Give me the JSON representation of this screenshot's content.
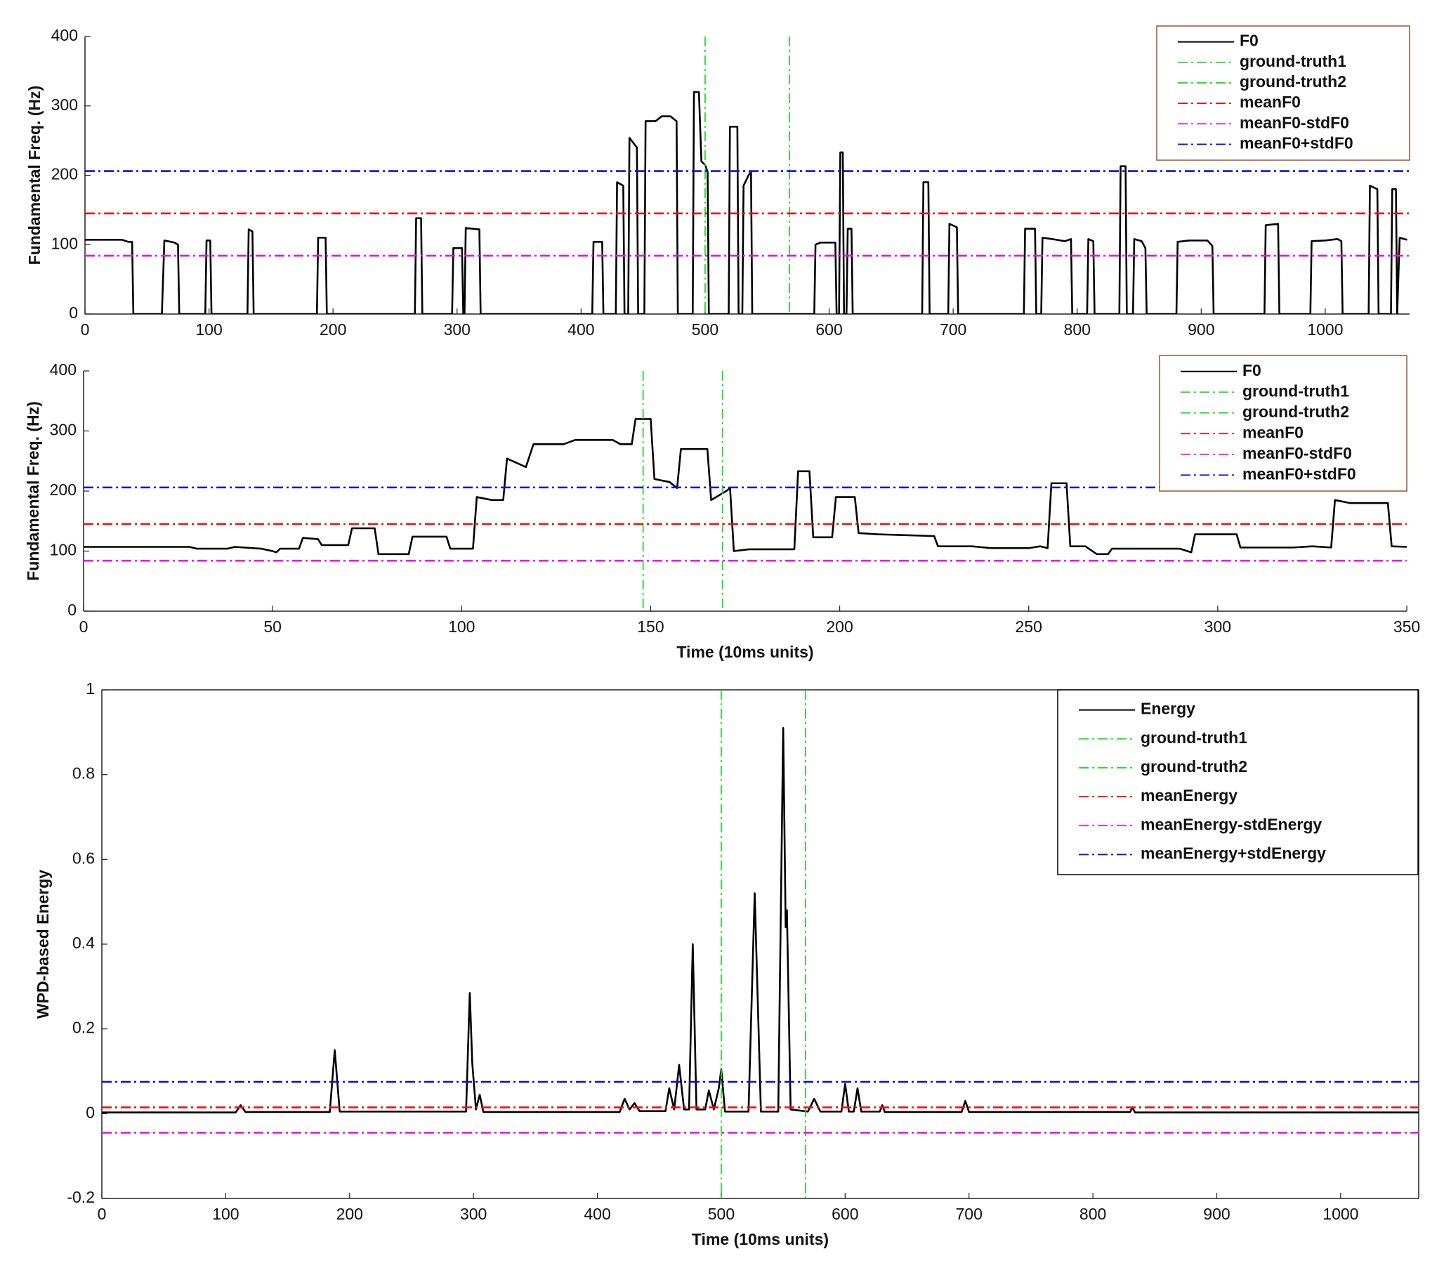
{
  "chart_data": [
    {
      "type": "line",
      "ylabel": "Fundamental Freq. (Hz)",
      "xlim": [
        0,
        1068
      ],
      "ylim": [
        0,
        400
      ],
      "xticks": [
        0,
        100,
        200,
        300,
        400,
        500,
        600,
        700,
        800,
        900,
        1000
      ],
      "yticks": [
        0,
        100,
        200,
        300,
        400
      ],
      "legend": "upper right",
      "legend_edgecolor": "#a0522d",
      "box": false,
      "series": [
        {
          "name": "F0",
          "color": "#000000",
          "style": "solid",
          "x": [
            0,
            30,
            35,
            38,
            39,
            62,
            64,
            72,
            75,
            76,
            97,
            98,
            101,
            102,
            131,
            132,
            135,
            136,
            187,
            188,
            194,
            195,
            266,
            267,
            271,
            272,
            296,
            297,
            304,
            305,
            306,
            307,
            318,
            319,
            409,
            410,
            417,
            418,
            428,
            429,
            434,
            435,
            438,
            439,
            445,
            446,
            451,
            452,
            460,
            465,
            472,
            477,
            478,
            490,
            491,
            495,
            497,
            500,
            502,
            503,
            519,
            520,
            526,
            527,
            530,
            531,
            535,
            537,
            538,
            588,
            589,
            593,
            605,
            606,
            608,
            609,
            611,
            612,
            614,
            615,
            618,
            619,
            675,
            676,
            680,
            681,
            696,
            697,
            703,
            704,
            757,
            758,
            766,
            767,
            771,
            772,
            780,
            790,
            795,
            796,
            808,
            809,
            813,
            814,
            834,
            835,
            839,
            840,
            845,
            846,
            852,
            855,
            856,
            880,
            881,
            890,
            905,
            909,
            910,
            951,
            952,
            962,
            963,
            988,
            989,
            1000,
            1010,
            1013,
            1014,
            1035,
            1036,
            1042,
            1043,
            1053,
            1054,
            1057,
            1058,
            1060,
            1066
          ],
          "values": [
            107,
            107,
            104,
            104,
            0,
            0,
            106,
            103,
            100,
            0,
            0,
            106,
            106,
            0,
            0,
            122,
            119,
            0,
            0,
            110,
            110,
            0,
            0,
            138,
            138,
            0,
            0,
            95,
            95,
            0,
            0,
            124,
            122,
            0,
            0,
            104,
            104,
            0,
            0,
            190,
            185,
            0,
            0,
            254,
            240,
            0,
            0,
            278,
            278,
            285,
            285,
            278,
            0,
            0,
            320,
            320,
            220,
            215,
            205,
            0,
            0,
            270,
            270,
            0,
            0,
            185,
            200,
            205,
            0,
            0,
            100,
            103,
            103,
            0,
            0,
            233,
            233,
            0,
            0,
            123,
            123,
            0,
            0,
            190,
            190,
            0,
            0,
            130,
            125,
            0,
            0,
            123,
            123,
            0,
            0,
            110,
            108,
            105,
            108,
            0,
            0,
            108,
            105,
            0,
            0,
            213,
            213,
            0,
            0,
            108,
            105,
            95,
            0,
            0,
            104,
            106,
            106,
            98,
            0,
            0,
            128,
            130,
            0,
            0,
            105,
            106,
            108,
            105,
            0,
            0,
            185,
            180,
            0,
            0,
            180,
            180,
            0,
            110,
            107
          ]
        },
        {
          "name": "ground-truth1",
          "color": "#22dd22",
          "style": "dashdot",
          "vline": 500
        },
        {
          "name": "ground-truth2",
          "color": "#22dd22",
          "style": "dashdot",
          "vline": 568
        },
        {
          "name": "meanF0",
          "color": "#ee1111",
          "style": "dashdot",
          "hline": 145
        },
        {
          "name": "meanF0-stdF0",
          "color": "#ee11ee",
          "style": "dashdot",
          "hline": 84
        },
        {
          "name": "meanF0+stdF0",
          "color": "#1111dd",
          "style": "dashdot",
          "hline": 206
        }
      ]
    },
    {
      "type": "line",
      "ylabel": "Fundamental Freq. (Hz)",
      "xlabel": "Time (10ms units)",
      "xlim": [
        0,
        350
      ],
      "ylim": [
        0,
        400
      ],
      "xticks": [
        0,
        50,
        100,
        150,
        200,
        250,
        300,
        350
      ],
      "yticks": [
        0,
        100,
        200,
        300,
        400
      ],
      "legend": "upper right",
      "legend_edgecolor": "#a0522d",
      "box": false,
      "series": [
        {
          "name": "F0",
          "color": "#000000",
          "style": "solid",
          "x": [
            0,
            28,
            30,
            38,
            40,
            47,
            50,
            51,
            52,
            57,
            58,
            62,
            63,
            70,
            71,
            77,
            78,
            86,
            87,
            96,
            97,
            103,
            104,
            108,
            111,
            112,
            117,
            119,
            127,
            130,
            140,
            142,
            145,
            146,
            150,
            151,
            155,
            157,
            158,
            165,
            166,
            170,
            171,
            172,
            176,
            188,
            189,
            192,
            193,
            198,
            199,
            204,
            205,
            210,
            225,
            226,
            235,
            240,
            250,
            253,
            255,
            256,
            260,
            261,
            265,
            268,
            271,
            272,
            280,
            290,
            293,
            294,
            305,
            306,
            320,
            325,
            330,
            331,
            335,
            345,
            346,
            350
          ],
          "values": [
            107,
            107,
            104,
            104,
            107,
            104,
            100,
            98,
            104,
            104,
            122,
            120,
            110,
            110,
            138,
            138,
            95,
            95,
            124,
            124,
            104,
            104,
            190,
            185,
            185,
            254,
            240,
            278,
            278,
            285,
            285,
            278,
            278,
            320,
            320,
            220,
            215,
            205,
            270,
            270,
            185,
            200,
            205,
            100,
            103,
            103,
            233,
            233,
            123,
            123,
            190,
            190,
            130,
            128,
            125,
            108,
            108,
            105,
            105,
            108,
            105,
            213,
            213,
            108,
            108,
            95,
            95,
            104,
            104,
            104,
            98,
            128,
            128,
            106,
            106,
            108,
            106,
            185,
            180,
            180,
            108,
            107
          ]
        },
        {
          "name": "ground-truth1",
          "color": "#22dd22",
          "style": "dashdot",
          "vline": 148
        },
        {
          "name": "ground-truth2",
          "color": "#22dd22",
          "style": "dashdot",
          "vline": 169
        },
        {
          "name": "meanF0",
          "color": "#ee1111",
          "style": "dashdot",
          "hline": 145
        },
        {
          "name": "meanF0-stdF0",
          "color": "#ee11ee",
          "style": "dashdot",
          "hline": 84
        },
        {
          "name": "meanF0+stdF0",
          "color": "#1111dd",
          "style": "dashdot",
          "hline": 206
        }
      ]
    },
    {
      "type": "line",
      "ylabel": "WPD-based Energy",
      "xlabel": "Time (10ms units)",
      "xlim": [
        0,
        1063
      ],
      "ylim": [
        -0.2,
        1
      ],
      "xticks": [
        0,
        100,
        200,
        300,
        400,
        500,
        600,
        700,
        800,
        900,
        1000
      ],
      "yticks": [
        -0.2,
        0,
        0.2,
        0.4,
        0.6,
        0.8,
        1
      ],
      "legend": "upper right",
      "legend_edgecolor": "#000000",
      "box": true,
      "series": [
        {
          "name": "Energy",
          "color": "#000000",
          "style": "solid",
          "x": [
            0,
            108,
            112,
            116,
            184,
            188,
            192,
            294,
            297,
            299,
            302,
            305,
            308,
            418,
            422,
            426,
            430,
            434,
            455,
            458,
            462,
            466,
            470,
            474,
            477,
            480,
            487,
            490,
            494,
            498,
            500,
            503,
            522,
            527,
            532,
            546,
            550,
            552,
            553,
            556,
            570,
            575,
            580,
            597,
            600,
            603,
            607,
            610,
            613,
            628,
            630,
            632,
            694,
            697,
            700,
            830,
            832,
            834,
            1063
          ],
          "values": [
            0.003,
            0.003,
            0.02,
            0.004,
            0.004,
            0.15,
            0.005,
            0.005,
            0.285,
            0.12,
            0.01,
            0.045,
            0.004,
            0.004,
            0.035,
            0.01,
            0.025,
            0.006,
            0.006,
            0.06,
            0.01,
            0.115,
            0.01,
            0.01,
            0.4,
            0.01,
            0.01,
            0.055,
            0.01,
            0.06,
            0.105,
            0.005,
            0.005,
            0.52,
            0.005,
            0.005,
            0.91,
            0.44,
            0.48,
            0.01,
            0.005,
            0.035,
            0.005,
            0.005,
            0.07,
            0.005,
            0.005,
            0.06,
            0.005,
            0.005,
            0.02,
            0.004,
            0.004,
            0.03,
            0.004,
            0.004,
            0.015,
            0.003,
            0.003
          ]
        },
        {
          "name": "ground-truth1",
          "color": "#22dd22",
          "style": "dashdot",
          "vline": 500
        },
        {
          "name": "ground-truth2",
          "color": "#22dd22",
          "style": "dashdot",
          "vline": 568
        },
        {
          "name": "meanEnergy",
          "color": "#ee1111",
          "style": "dashdot",
          "hline": 0.015
        },
        {
          "name": "meanEnergy-stdEnergy",
          "color": "#ee11ee",
          "style": "dashdot",
          "hline": -0.045
        },
        {
          "name": "meanEnergy+stdEnergy",
          "color": "#1111dd",
          "style": "dashdot",
          "hline": 0.075
        }
      ]
    }
  ]
}
